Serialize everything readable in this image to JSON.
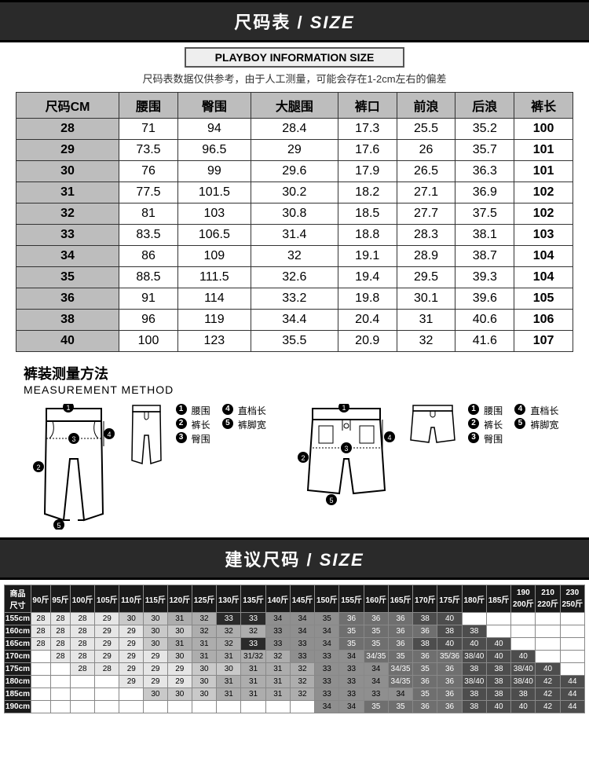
{
  "banner1_cn": "尺码表",
  "banner1_en": "SIZE",
  "subtitle": "PLAYBOY INFORMATION SIZE",
  "note": "尺码表数据仅供参考，由于人工测量，可能会存在1-2cm左右的偏差",
  "size_table": {
    "columns": [
      "尺码CM",
      "腰围",
      "臀围",
      "大腿围",
      "裤口",
      "前浪",
      "后浪",
      "裤长"
    ],
    "rows": [
      [
        "28",
        "71",
        "94",
        "28.4",
        "17.3",
        "25.5",
        "35.2",
        "100"
      ],
      [
        "29",
        "73.5",
        "96.5",
        "29",
        "17.6",
        "26",
        "35.7",
        "101"
      ],
      [
        "30",
        "76",
        "99",
        "29.6",
        "17.9",
        "26.5",
        "36.3",
        "101"
      ],
      [
        "31",
        "77.5",
        "101.5",
        "30.2",
        "18.2",
        "27.1",
        "36.9",
        "102"
      ],
      [
        "32",
        "81",
        "103",
        "30.8",
        "18.5",
        "27.7",
        "37.5",
        "102"
      ],
      [
        "33",
        "83.5",
        "106.5",
        "31.4",
        "18.8",
        "28.3",
        "38.1",
        "103"
      ],
      [
        "34",
        "86",
        "109",
        "32",
        "19.1",
        "28.9",
        "38.7",
        "104"
      ],
      [
        "35",
        "88.5",
        "111.5",
        "32.6",
        "19.4",
        "29.5",
        "39.3",
        "104"
      ],
      [
        "36",
        "91",
        "114",
        "33.2",
        "19.8",
        "30.1",
        "39.6",
        "105"
      ],
      [
        "38",
        "96",
        "119",
        "34.4",
        "20.4",
        "31",
        "40.6",
        "106"
      ],
      [
        "40",
        "100",
        "123",
        "35.5",
        "20.9",
        "32",
        "41.6",
        "107"
      ]
    ]
  },
  "mm_title_cn": "裤装测量方法",
  "mm_title_en": "MEASUREMENT METHOD",
  "legend": {
    "l1": "腰围",
    "l2": "裤长",
    "l3": "臀围",
    "l4": "直档长",
    "l5": "裤脚宽"
  },
  "banner2_cn": "建议尺码",
  "banner2_en": "SIZE",
  "rec_table": {
    "head_label": "商品\n尺寸",
    "weights": [
      "90斤",
      "95斤",
      "100斤",
      "105斤",
      "110斤",
      "115斤",
      "120斤",
      "125斤",
      "130斤",
      "135斤",
      "140斤",
      "145斤",
      "150斤",
      "155斤",
      "160斤",
      "165斤",
      "170斤",
      "175斤",
      "180斤",
      "185斤",
      "190 200斤",
      "210 220斤",
      "230 250斤"
    ],
    "heights": [
      "155cm",
      "160cm",
      "165cm",
      "170cm",
      "175cm",
      "180cm",
      "185cm",
      "190cm"
    ],
    "cells": [
      [
        "28",
        "28",
        "28",
        "29",
        "30",
        "30",
        "31",
        "32",
        "33",
        "33",
        "34",
        "34",
        "35",
        "36",
        "36",
        "36",
        "38",
        "40",
        "",
        "",
        "",
        "",
        ""
      ],
      [
        "28",
        "28",
        "28",
        "29",
        "29",
        "30",
        "30",
        "32",
        "32",
        "32",
        "33",
        "34",
        "34",
        "35",
        "35",
        "36",
        "36",
        "38",
        "38",
        "",
        "",
        "",
        ""
      ],
      [
        "28",
        "28",
        "28",
        "29",
        "29",
        "30",
        "31",
        "31",
        "32",
        "33",
        "33",
        "33",
        "34",
        "35",
        "35",
        "36",
        "38",
        "40",
        "40",
        "40",
        "",
        "",
        ""
      ],
      [
        "",
        "28",
        "28",
        "29",
        "29",
        "29",
        "30",
        "31",
        "31",
        "31/32",
        "32",
        "33",
        "33",
        "34",
        "34/35",
        "35",
        "36",
        "35/36",
        "38/40",
        "40",
        "40",
        "",
        ""
      ],
      [
        "",
        "",
        "28",
        "28",
        "29",
        "29",
        "29",
        "30",
        "30",
        "31",
        "31",
        "32",
        "33",
        "33",
        "34",
        "34/35",
        "35",
        "36",
        "38",
        "38",
        "38/40",
        "40",
        ""
      ],
      [
        "",
        "",
        "",
        "",
        "29",
        "29",
        "29",
        "30",
        "31",
        "31",
        "31",
        "32",
        "33",
        "33",
        "34",
        "34/35",
        "36",
        "36",
        "38/40",
        "38",
        "38/40",
        "42",
        "44"
      ],
      [
        "",
        "",
        "",
        "",
        "",
        "30",
        "30",
        "30",
        "31",
        "31",
        "31",
        "32",
        "33",
        "33",
        "33",
        "34",
        "35",
        "36",
        "38",
        "38",
        "38",
        "42",
        "44"
      ],
      [
        "",
        "",
        "",
        "",
        "",
        "",
        "",
        "",
        "",
        "",
        "",
        "",
        "34",
        "34",
        "35",
        "35",
        "36",
        "36",
        "38",
        "40",
        "40",
        "42",
        "44"
      ]
    ],
    "shades": [
      [
        "lg",
        "lg",
        "lg",
        "lg",
        "mg",
        "mg",
        "g",
        "g",
        "bk",
        "bk",
        "dg",
        "dg",
        "dg",
        "dk",
        "dk",
        "dk",
        "dd",
        "dd",
        "wh",
        "wh",
        "wh",
        "wh",
        "wh"
      ],
      [
        "lg",
        "lg",
        "lg",
        "lg",
        "lg",
        "mg",
        "mg",
        "g",
        "g",
        "g",
        "dg",
        "dg",
        "dg",
        "dk",
        "dk",
        "dk",
        "dk",
        "dd",
        "dd",
        "wh",
        "wh",
        "wh",
        "wh"
      ],
      [
        "lg",
        "lg",
        "lg",
        "lg",
        "lg",
        "mg",
        "g",
        "g",
        "g",
        "bk",
        "dg",
        "dg",
        "dg",
        "dk",
        "dk",
        "dk",
        "dd",
        "dd",
        "dd",
        "dd",
        "wh",
        "wh",
        "wh"
      ],
      [
        "wh",
        "lg",
        "lg",
        "lg",
        "lg",
        "lg",
        "mg",
        "g",
        "g",
        "g",
        "g",
        "dg",
        "dg",
        "dg",
        "dk",
        "dk",
        "dk",
        "dk",
        "dd",
        "dd",
        "dd",
        "wh",
        "wh"
      ],
      [
        "wh",
        "wh",
        "lg",
        "lg",
        "lg",
        "lg",
        "lg",
        "mg",
        "mg",
        "g",
        "g",
        "g",
        "dg",
        "dg",
        "dg",
        "dk",
        "dk",
        "dk",
        "dd",
        "dd",
        "dd",
        "dd",
        "wh"
      ],
      [
        "wh",
        "wh",
        "wh",
        "wh",
        "lg",
        "lg",
        "lg",
        "mg",
        "g",
        "g",
        "g",
        "g",
        "dg",
        "dg",
        "dg",
        "dk",
        "dk",
        "dk",
        "dd",
        "dd",
        "dd",
        "dd",
        "dd"
      ],
      [
        "wh",
        "wh",
        "wh",
        "wh",
        "wh",
        "mg",
        "mg",
        "mg",
        "g",
        "g",
        "g",
        "g",
        "dg",
        "dg",
        "dg",
        "dg",
        "dk",
        "dk",
        "dd",
        "dd",
        "dd",
        "dd",
        "dd"
      ],
      [
        "wh",
        "wh",
        "wh",
        "wh",
        "wh",
        "wh",
        "wh",
        "wh",
        "wh",
        "wh",
        "wh",
        "wh",
        "dg",
        "dg",
        "dk",
        "dk",
        "dk",
        "dk",
        "dd",
        "dd",
        "dd",
        "dd",
        "dd"
      ]
    ]
  }
}
